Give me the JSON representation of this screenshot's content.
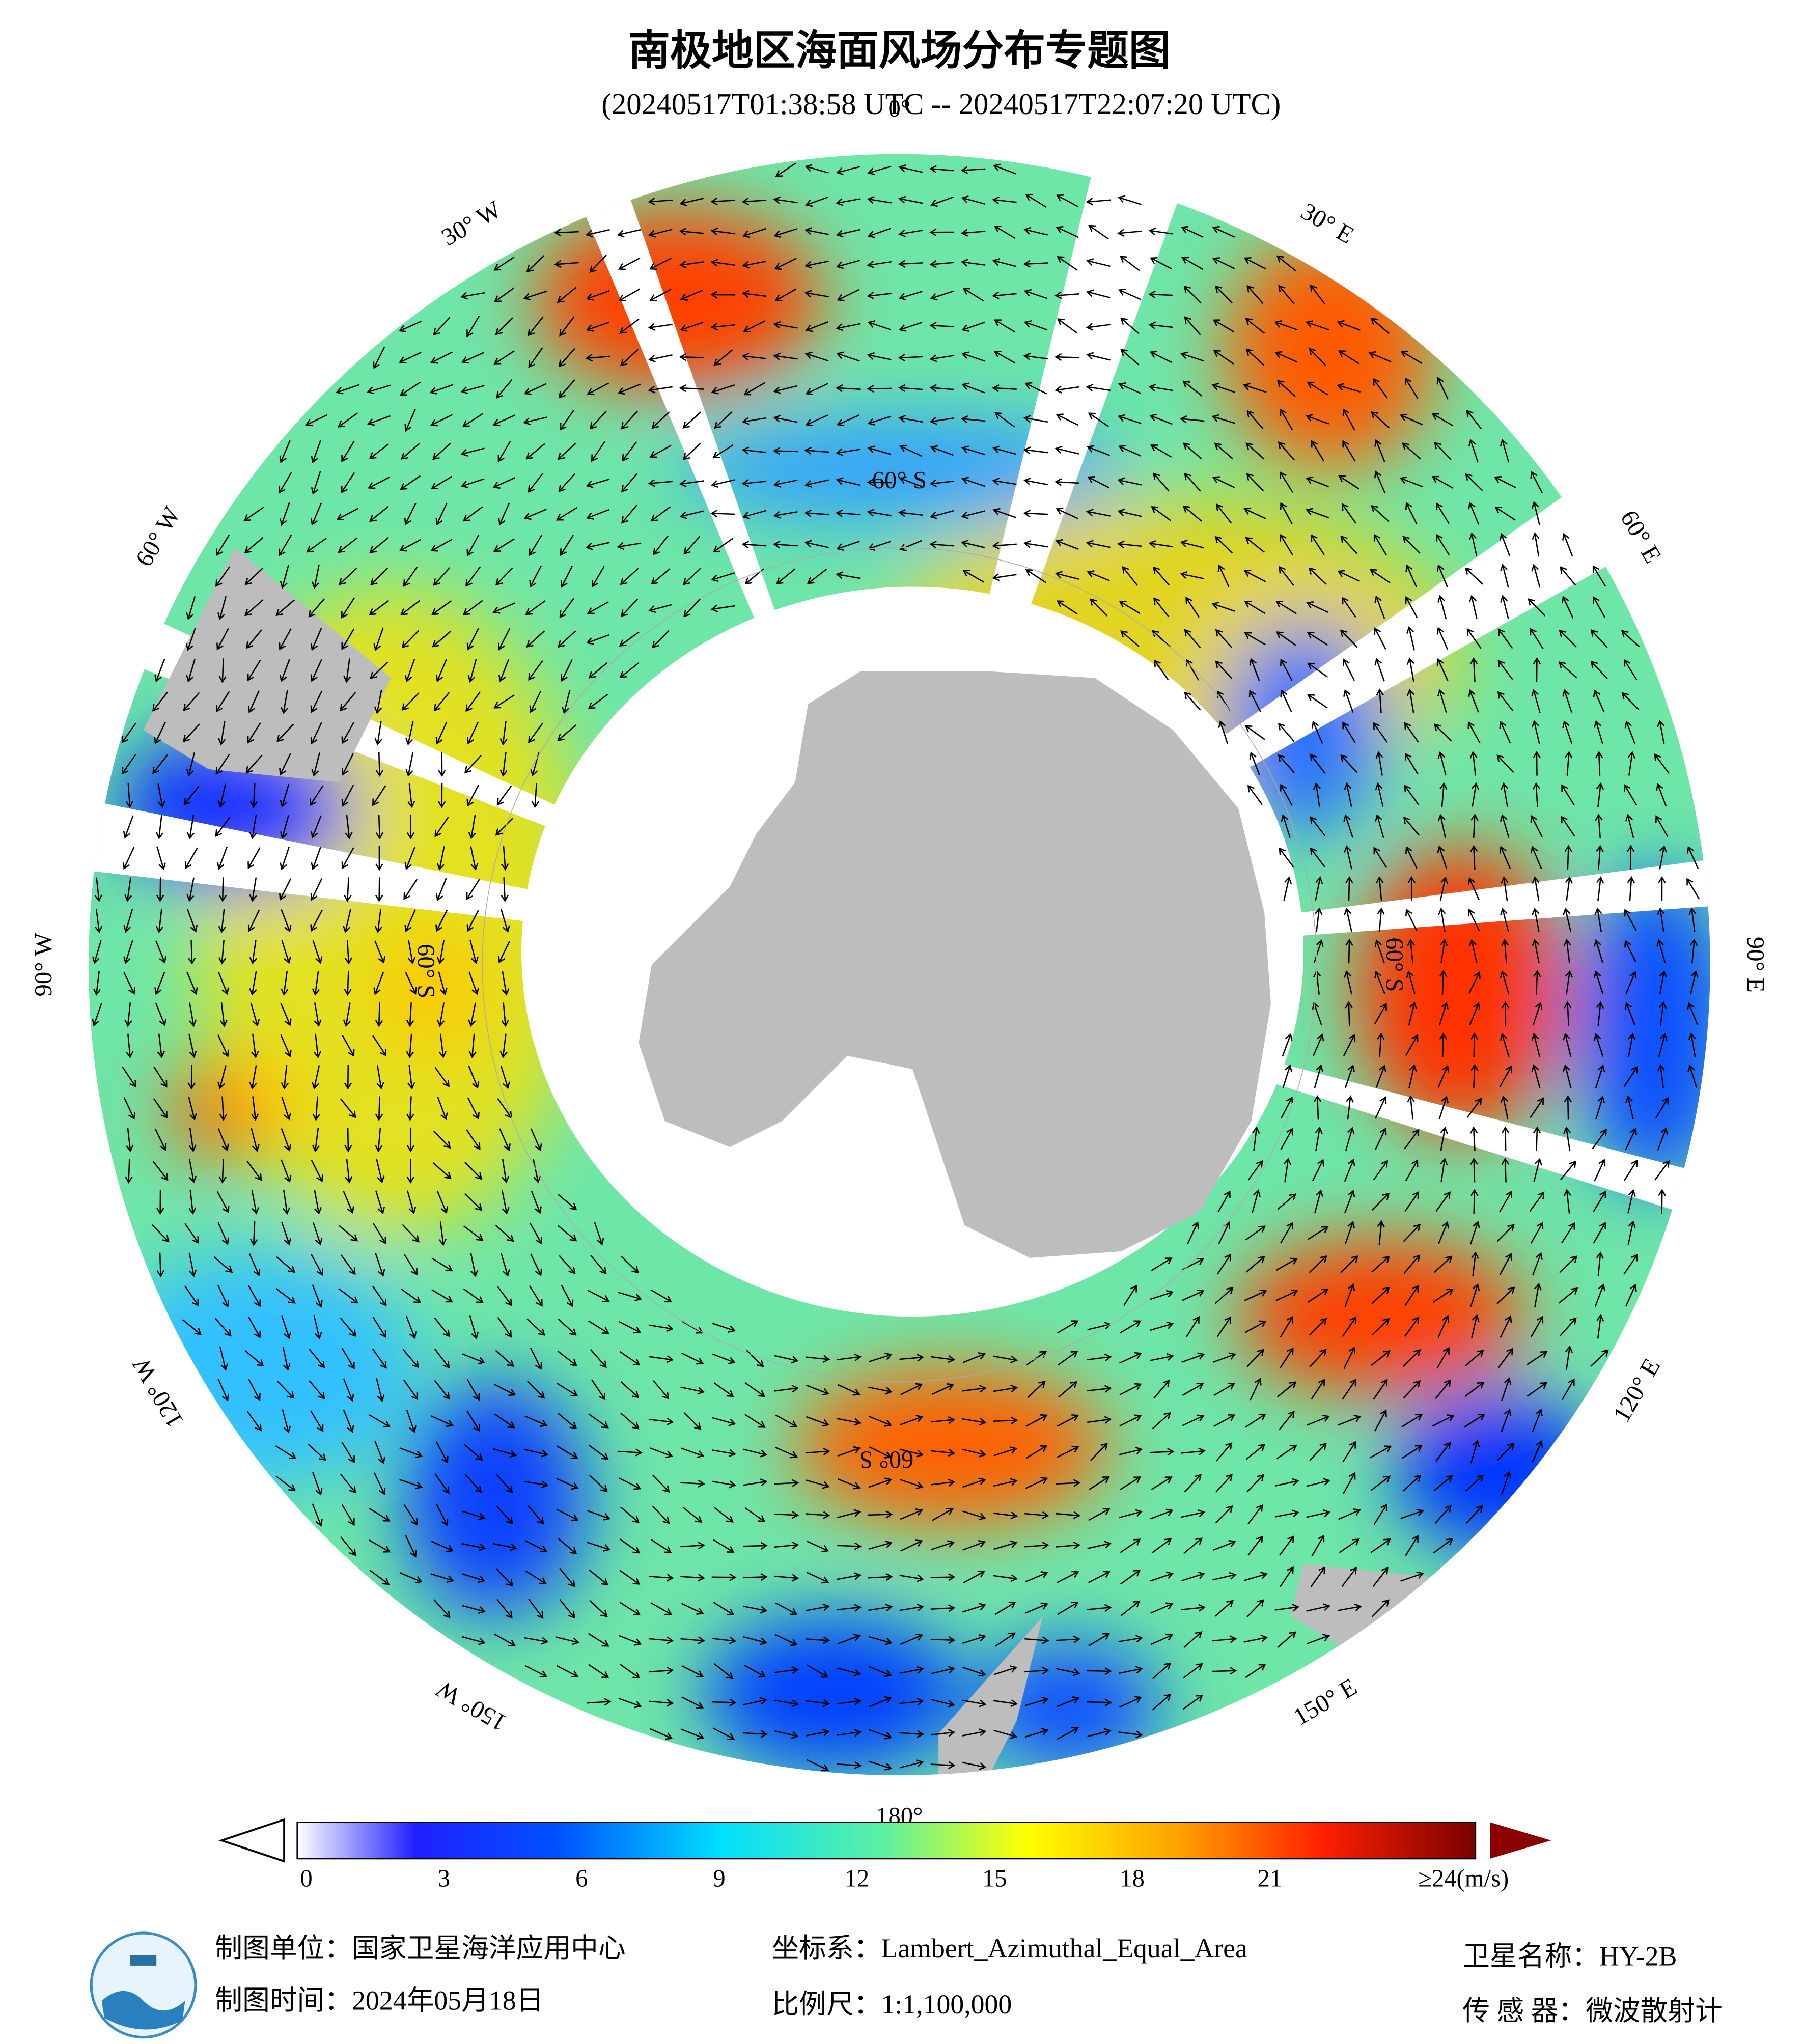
{
  "header": {
    "title": "南极地区海面风场分布专题图",
    "subtitle": "(20240517T01:38:58 UTC -- 20240517T22:07:20 UTC)"
  },
  "map": {
    "lon_labels": [
      "0°",
      "30° E",
      "60° E",
      "90° E",
      "120° E",
      "150° E",
      "180°",
      "150° W",
      "120° W",
      "90° W",
      "60° W",
      "30° W"
    ],
    "lat_labels": [
      "60° S",
      "60° S",
      "60° S",
      "60° S"
    ]
  },
  "colorbar": {
    "ticks": [
      0,
      3,
      6,
      9,
      12,
      15,
      18,
      21
    ],
    "max_label": "≥24(m/s)"
  },
  "footer": {
    "producer": "制图单位：国家卫星海洋应用中心",
    "date": "制图时间：2024年05月18日",
    "projection": "坐标系：Lambert_Azimuthal_Equal_Area",
    "scale": "比例尺：1:1,100,000",
    "satellite": "卫星名称：HY-2B",
    "sensor": "传 感 器：微波散射计"
  }
}
